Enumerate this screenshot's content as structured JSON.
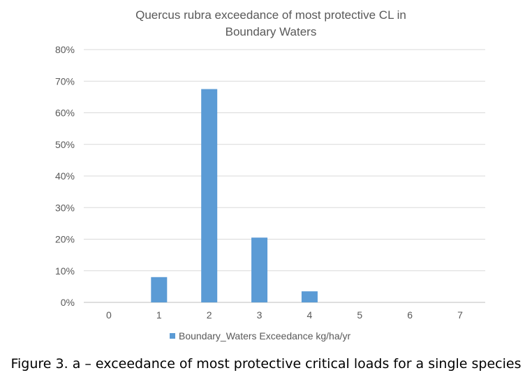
{
  "chart_data": {
    "type": "bar",
    "title": "Quercus rubra exceedance of most protective CL in Boundary Waters",
    "title_lines": [
      "Quercus rubra exceedance of most protective CL in",
      "Boundary Waters"
    ],
    "categories": [
      "0",
      "1",
      "2",
      "3",
      "4",
      "5",
      "6",
      "7"
    ],
    "series": [
      {
        "name": "Boundary_Waters Exceedance kg/ha/yr",
        "values": [
          0,
          0.08,
          0.675,
          0.205,
          0.035,
          0,
          0,
          0
        ],
        "color": "#5B9BD5"
      }
    ],
    "ylim": [
      0,
      0.8
    ],
    "yticks": [
      "0%",
      "10%",
      "20%",
      "30%",
      "40%",
      "50%",
      "60%",
      "70%",
      "80%"
    ],
    "grid": true,
    "legend": "bottom",
    "xlabel": "",
    "ylabel": ""
  },
  "caption": "Figure 3. a – exceedance of most protective critical loads for a single species"
}
